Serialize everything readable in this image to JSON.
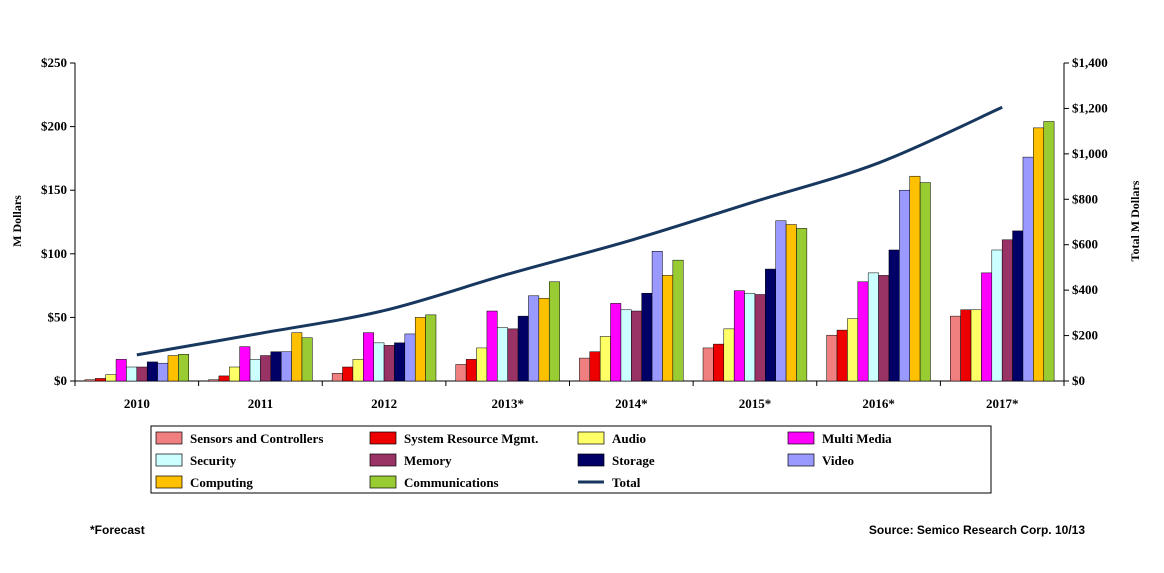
{
  "chart_data": {
    "type": "bar",
    "categories": [
      "2010",
      "2011",
      "2012",
      "2013*",
      "2014*",
      "2015*",
      "2016*",
      "2017*"
    ],
    "ylabel": "M Dollars",
    "y2label": "Total M Dollars",
    "ylim": [
      0,
      250
    ],
    "y2lim": [
      0,
      1400
    ],
    "yticks": [
      "$0",
      "$50",
      "$100",
      "$150",
      "$200",
      "$250"
    ],
    "y2ticks": [
      "$0",
      "$200",
      "$400",
      "$600",
      "$800",
      "$1,000",
      "$1,200",
      "$1,400"
    ],
    "grid": false,
    "legend_position": "bottom",
    "series": [
      {
        "name": "Sensors and Controllers",
        "color": "#f08080",
        "values": [
          1,
          1,
          6,
          13,
          18,
          26,
          36,
          51
        ]
      },
      {
        "name": "System Resource Mgmt.",
        "color": "#ee0000",
        "values": [
          2,
          4,
          11,
          17,
          23,
          29,
          40,
          56
        ]
      },
      {
        "name": "Audio",
        "color": "#ffff66",
        "values": [
          5,
          11,
          17,
          26,
          35,
          41,
          49,
          56
        ]
      },
      {
        "name": "Multi Media",
        "color": "#ff00ff",
        "values": [
          17,
          27,
          38,
          55,
          61,
          71,
          78,
          85
        ]
      },
      {
        "name": "Security",
        "color": "#ccffff",
        "values": [
          11,
          17,
          30,
          42,
          56,
          69,
          85,
          103
        ]
      },
      {
        "name": "Memory",
        "color": "#993366",
        "values": [
          11,
          20,
          28,
          41,
          55,
          68,
          83,
          111
        ]
      },
      {
        "name": "Storage",
        "color": "#000066",
        "values": [
          15,
          23,
          30,
          51,
          69,
          88,
          103,
          118
        ]
      },
      {
        "name": "Video",
        "color": "#9999ff",
        "values": [
          14,
          23,
          37,
          67,
          102,
          126,
          150,
          176
        ]
      },
      {
        "name": "Computing",
        "color": "#ffc000",
        "values": [
          20,
          38,
          50,
          65,
          83,
          123,
          161,
          199
        ]
      },
      {
        "name": "Communications",
        "color": "#99cc33",
        "values": [
          21,
          34,
          52,
          78,
          95,
          120,
          156,
          204
        ]
      }
    ],
    "total": {
      "name": "Total",
      "color": "#17375e",
      "axis": "right",
      "values": [
        115,
        210,
        310,
        470,
        620,
        790,
        960,
        1205
      ]
    }
  },
  "footnotes": {
    "forecast": "*Forecast",
    "source": "Source: Semico Research Corp. 10/13"
  }
}
